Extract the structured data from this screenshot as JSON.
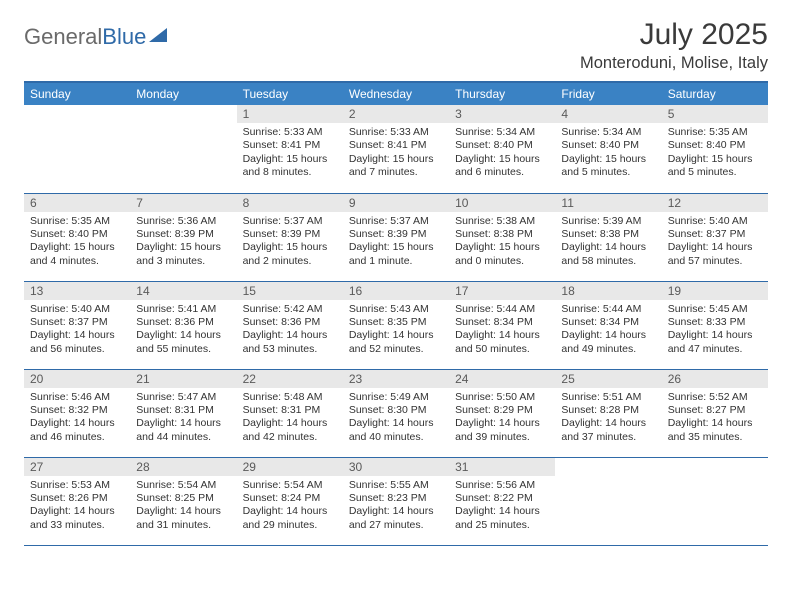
{
  "logo": {
    "part1": "General",
    "part2": "Blue"
  },
  "title": "July 2025",
  "location": "Monteroduni, Molise, Italy",
  "colors": {
    "header_bg": "#3a82c4",
    "border": "#2f6aa8",
    "daynum_bg": "#e8e8e8",
    "text": "#333333"
  },
  "day_names": [
    "Sunday",
    "Monday",
    "Tuesday",
    "Wednesday",
    "Thursday",
    "Friday",
    "Saturday"
  ],
  "weeks": [
    [
      null,
      null,
      {
        "n": "1",
        "sr": "5:33 AM",
        "ss": "8:41 PM",
        "dl": "15 hours and 8 minutes."
      },
      {
        "n": "2",
        "sr": "5:33 AM",
        "ss": "8:41 PM",
        "dl": "15 hours and 7 minutes."
      },
      {
        "n": "3",
        "sr": "5:34 AM",
        "ss": "8:40 PM",
        "dl": "15 hours and 6 minutes."
      },
      {
        "n": "4",
        "sr": "5:34 AM",
        "ss": "8:40 PM",
        "dl": "15 hours and 5 minutes."
      },
      {
        "n": "5",
        "sr": "5:35 AM",
        "ss": "8:40 PM",
        "dl": "15 hours and 5 minutes."
      }
    ],
    [
      {
        "n": "6",
        "sr": "5:35 AM",
        "ss": "8:40 PM",
        "dl": "15 hours and 4 minutes."
      },
      {
        "n": "7",
        "sr": "5:36 AM",
        "ss": "8:39 PM",
        "dl": "15 hours and 3 minutes."
      },
      {
        "n": "8",
        "sr": "5:37 AM",
        "ss": "8:39 PM",
        "dl": "15 hours and 2 minutes."
      },
      {
        "n": "9",
        "sr": "5:37 AM",
        "ss": "8:39 PM",
        "dl": "15 hours and 1 minute."
      },
      {
        "n": "10",
        "sr": "5:38 AM",
        "ss": "8:38 PM",
        "dl": "15 hours and 0 minutes."
      },
      {
        "n": "11",
        "sr": "5:39 AM",
        "ss": "8:38 PM",
        "dl": "14 hours and 58 minutes."
      },
      {
        "n": "12",
        "sr": "5:40 AM",
        "ss": "8:37 PM",
        "dl": "14 hours and 57 minutes."
      }
    ],
    [
      {
        "n": "13",
        "sr": "5:40 AM",
        "ss": "8:37 PM",
        "dl": "14 hours and 56 minutes."
      },
      {
        "n": "14",
        "sr": "5:41 AM",
        "ss": "8:36 PM",
        "dl": "14 hours and 55 minutes."
      },
      {
        "n": "15",
        "sr": "5:42 AM",
        "ss": "8:36 PM",
        "dl": "14 hours and 53 minutes."
      },
      {
        "n": "16",
        "sr": "5:43 AM",
        "ss": "8:35 PM",
        "dl": "14 hours and 52 minutes."
      },
      {
        "n": "17",
        "sr": "5:44 AM",
        "ss": "8:34 PM",
        "dl": "14 hours and 50 minutes."
      },
      {
        "n": "18",
        "sr": "5:44 AM",
        "ss": "8:34 PM",
        "dl": "14 hours and 49 minutes."
      },
      {
        "n": "19",
        "sr": "5:45 AM",
        "ss": "8:33 PM",
        "dl": "14 hours and 47 minutes."
      }
    ],
    [
      {
        "n": "20",
        "sr": "5:46 AM",
        "ss": "8:32 PM",
        "dl": "14 hours and 46 minutes."
      },
      {
        "n": "21",
        "sr": "5:47 AM",
        "ss": "8:31 PM",
        "dl": "14 hours and 44 minutes."
      },
      {
        "n": "22",
        "sr": "5:48 AM",
        "ss": "8:31 PM",
        "dl": "14 hours and 42 minutes."
      },
      {
        "n": "23",
        "sr": "5:49 AM",
        "ss": "8:30 PM",
        "dl": "14 hours and 40 minutes."
      },
      {
        "n": "24",
        "sr": "5:50 AM",
        "ss": "8:29 PM",
        "dl": "14 hours and 39 minutes."
      },
      {
        "n": "25",
        "sr": "5:51 AM",
        "ss": "8:28 PM",
        "dl": "14 hours and 37 minutes."
      },
      {
        "n": "26",
        "sr": "5:52 AM",
        "ss": "8:27 PM",
        "dl": "14 hours and 35 minutes."
      }
    ],
    [
      {
        "n": "27",
        "sr": "5:53 AM",
        "ss": "8:26 PM",
        "dl": "14 hours and 33 minutes."
      },
      {
        "n": "28",
        "sr": "5:54 AM",
        "ss": "8:25 PM",
        "dl": "14 hours and 31 minutes."
      },
      {
        "n": "29",
        "sr": "5:54 AM",
        "ss": "8:24 PM",
        "dl": "14 hours and 29 minutes."
      },
      {
        "n": "30",
        "sr": "5:55 AM",
        "ss": "8:23 PM",
        "dl": "14 hours and 27 minutes."
      },
      {
        "n": "31",
        "sr": "5:56 AM",
        "ss": "8:22 PM",
        "dl": "14 hours and 25 minutes."
      },
      null,
      null
    ]
  ],
  "labels": {
    "sunrise": "Sunrise: ",
    "sunset": "Sunset: ",
    "daylight": "Daylight: "
  }
}
